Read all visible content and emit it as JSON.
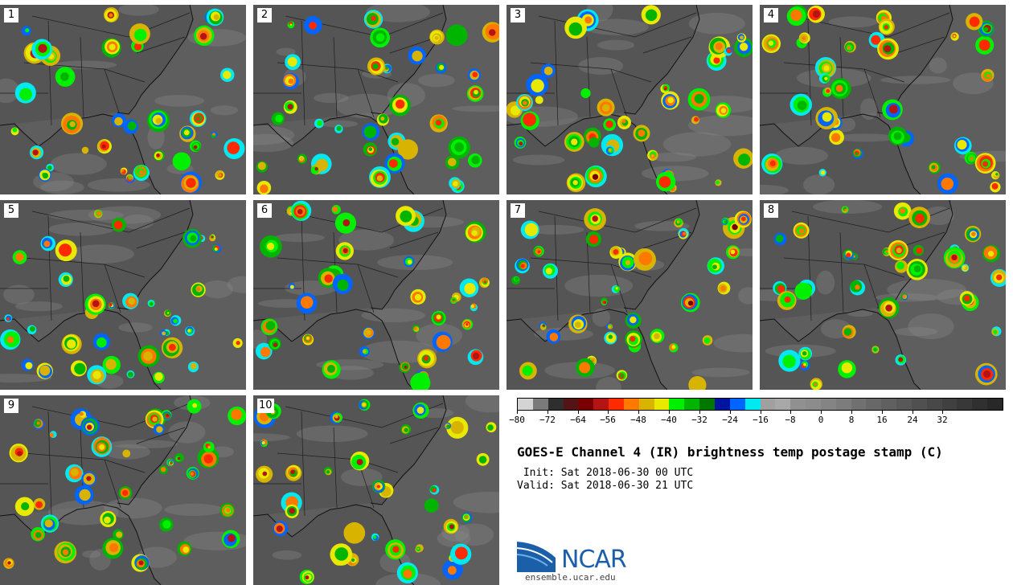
{
  "panels": [
    {
      "label": "1"
    },
    {
      "label": "2"
    },
    {
      "label": "3"
    },
    {
      "label": "4"
    },
    {
      "label": "5"
    },
    {
      "label": "6"
    },
    {
      "label": "7"
    },
    {
      "label": "8"
    },
    {
      "label": "9"
    },
    {
      "label": "10"
    }
  ],
  "colorbar": {
    "colors": [
      "#d4d4d4",
      "#7a7a7a",
      "#2e2e2e",
      "#521414",
      "#7a0000",
      "#b41414",
      "#ff2a00",
      "#ff7800",
      "#d8b400",
      "#e8e800",
      "#00f000",
      "#00b400",
      "#007800",
      "#0014a0",
      "#0064ff",
      "#00e8f0",
      "#a0a0a0",
      "#a8a8a8",
      "#909090",
      "#8c8c8c",
      "#848484",
      "#7c7c7c",
      "#707070",
      "#686868",
      "#606060",
      "#585858",
      "#505050",
      "#484848",
      "#404040",
      "#383838",
      "#303030",
      "#282828"
    ],
    "tick_labels": [
      "−80",
      "−72",
      "−64",
      "−56",
      "−48",
      "−40",
      "−32",
      "−24",
      "−16",
      "−8",
      "0",
      "8",
      "16",
      "24",
      "32"
    ]
  },
  "title": "GOES-E Channel 4 (IR) brightness temp postage stamp (C)",
  "init_line": " Init: Sat 2018-06-30 00 UTC",
  "valid_line": "Valid: Sat 2018-06-30 21 UTC",
  "logo": {
    "text": "NCAR",
    "url": "ensemble.ucar.edu"
  }
}
